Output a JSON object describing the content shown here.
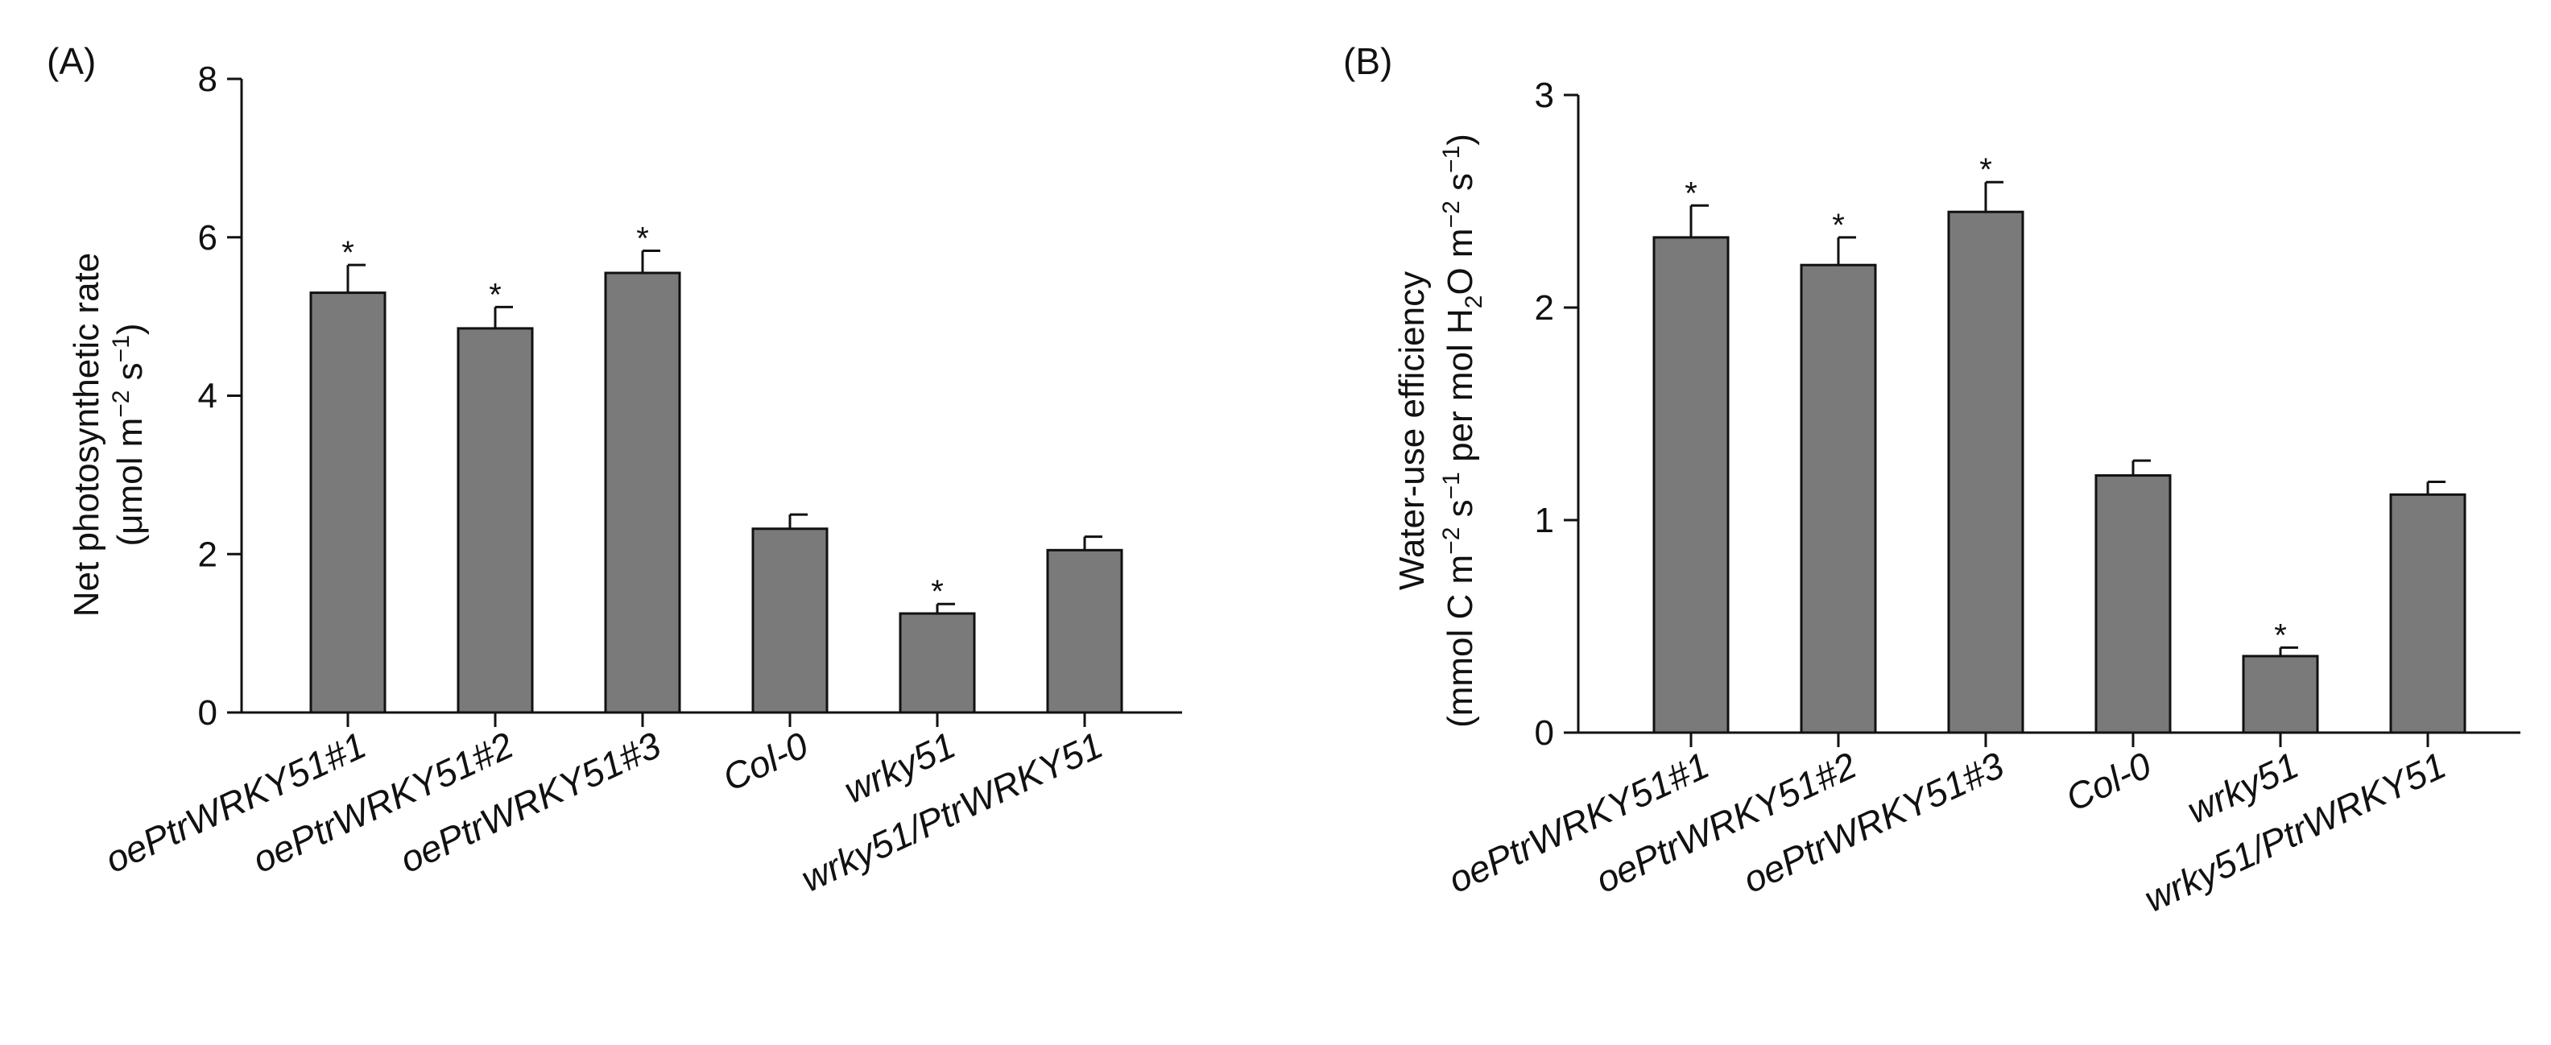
{
  "chart_data": [
    {
      "type": "bar",
      "panel_label": "(A)",
      "ylabel_line1": "Net photosynthetic rate",
      "ylabel_line2": {
        "prefix": "(μmol m",
        "exp1": "−2",
        "mid": " s",
        "exp2": "−1",
        "suffix": ")"
      },
      "categories": [
        "oePtrWRKY51#1",
        "oePtrWRKY51#2",
        "oePtrWRKY51#3",
        "Col-0",
        "wrky51",
        "wrky51/PtrWRKY51"
      ],
      "values": [
        5.3,
        4.85,
        5.55,
        2.32,
        1.25,
        2.05
      ],
      "errors": [
        0.35,
        0.27,
        0.28,
        0.18,
        0.12,
        0.17
      ],
      "significant": [
        true,
        true,
        true,
        false,
        true,
        false
      ],
      "significance_marker": "*",
      "ylim": [
        0,
        8
      ],
      "yticks": [
        0,
        2,
        4,
        6,
        8
      ],
      "bar_color": "#7a7a7a"
    },
    {
      "type": "bar",
      "panel_label": "(B)",
      "ylabel_line1": "Water-use efficiency",
      "ylabel_line2": {
        "p1": "(mmol C m",
        "e1": "−2",
        "p2": " s",
        "e2": "−1",
        "p3": " per mol H",
        "sub": "2",
        "p4": "O m",
        "e3": "−2",
        "p5": " s",
        "e4": "−1",
        "p6": ")"
      },
      "categories": [
        "oePtrWRKY51#1",
        "oePtrWRKY51#2",
        "oePtrWRKY51#3",
        "Col-0",
        "wrky51",
        "wrky51/PtrWRKY51"
      ],
      "values": [
        2.33,
        2.2,
        2.45,
        1.21,
        0.36,
        1.12
      ],
      "errors": [
        0.15,
        0.13,
        0.14,
        0.07,
        0.04,
        0.06
      ],
      "significant": [
        true,
        true,
        true,
        false,
        true,
        false
      ],
      "significance_marker": "*",
      "ylim": [
        0,
        3
      ],
      "yticks": [
        0,
        1,
        2,
        3
      ],
      "bar_color": "#7a7a7a"
    }
  ]
}
